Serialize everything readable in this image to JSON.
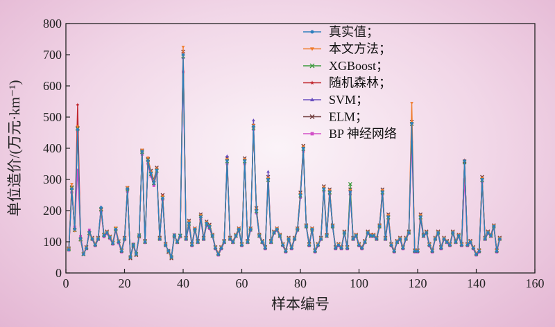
{
  "chart_data": {
    "type": "line",
    "xlabel": "样本编号",
    "ylabel": "单位造价/(万元·km⁻¹)",
    "xlim": [
      0,
      160
    ],
    "ylim": [
      0,
      800
    ],
    "xticks": [
      0,
      20,
      40,
      60,
      80,
      100,
      120,
      140,
      160
    ],
    "yticks": [
      0,
      100,
      200,
      300,
      400,
      500,
      600,
      700,
      800
    ],
    "grid": false,
    "legend_position": "top-right",
    "x": [
      1,
      2,
      3,
      4,
      5,
      6,
      7,
      8,
      9,
      10,
      11,
      12,
      13,
      14,
      15,
      16,
      17,
      18,
      19,
      20,
      21,
      22,
      23,
      24,
      25,
      26,
      27,
      28,
      29,
      30,
      31,
      32,
      33,
      34,
      35,
      36,
      37,
      38,
      39,
      40,
      41,
      42,
      43,
      44,
      45,
      46,
      47,
      48,
      49,
      50,
      51,
      52,
      53,
      54,
      55,
      56,
      57,
      58,
      59,
      60,
      61,
      62,
      63,
      64,
      65,
      66,
      67,
      68,
      69,
      70,
      71,
      72,
      73,
      74,
      75,
      76,
      77,
      78,
      79,
      80,
      81,
      82,
      83,
      84,
      85,
      86,
      87,
      88,
      89,
      90,
      91,
      92,
      93,
      94,
      95,
      96,
      97,
      98,
      99,
      100,
      101,
      102,
      103,
      104,
      105,
      106,
      107,
      108,
      109,
      110,
      111,
      112,
      113,
      114,
      115,
      116,
      117,
      118,
      119,
      120,
      121,
      122,
      123,
      124,
      125,
      126,
      127,
      128,
      129,
      130,
      131,
      132,
      133,
      134,
      135,
      136,
      137,
      138,
      139,
      140,
      141,
      142,
      143,
      144,
      145,
      146,
      147,
      148
    ],
    "series": [
      {
        "name": "真实值；",
        "color": "#2e7fbd",
        "marker": "circle",
        "values": [
          75,
          270,
          140,
          460,
          110,
          60,
          80,
          130,
          110,
          90,
          110,
          210,
          120,
          130,
          115,
          95,
          140,
          100,
          70,
          110,
          270,
          50,
          90,
          60,
          120,
          390,
          100,
          360,
          320,
          290,
          330,
          110,
          240,
          90,
          70,
          50,
          120,
          100,
          120,
          700,
          110,
          160,
          90,
          140,
          100,
          180,
          110,
          160,
          150,
          120,
          80,
          60,
          80,
          100,
          360,
          110,
          100,
          120,
          140,
          90,
          360,
          100,
          140,
          470,
          200,
          120,
          100,
          80,
          300,
          100,
          130,
          140,
          120,
          90,
          70,
          110,
          80,
          110,
          140,
          250,
          400,
          150,
          90,
          140,
          70,
          90,
          110,
          270,
          120,
          260,
          150,
          80,
          90,
          80,
          130,
          80,
          260,
          110,
          120,
          90,
          80,
          100,
          130,
          120,
          120,
          110,
          150,
          260,
          110,
          180,
          90,
          70,
          100,
          110,
          80,
          110,
          130,
          480,
          70,
          70,
          180,
          120,
          130,
          90,
          70,
          110,
          130,
          80,
          110,
          100,
          90,
          130,
          100,
          120,
          90,
          360,
          90,
          100,
          80,
          60,
          70,
          300,
          110,
          130,
          120,
          150,
          70,
          110
        ]
      },
      {
        "name": "本文方法；",
        "color": "#f07d2e",
        "marker": "triangle-down",
        "values": [
          78,
          285,
          135,
          470,
          105,
          62,
          82,
          125,
          112,
          92,
          112,
          200,
          125,
          132,
          118,
          98,
          145,
          103,
          72,
          112,
          275,
          48,
          88,
          58,
          118,
          395,
          102,
          370,
          325,
          295,
          335,
          112,
          245,
          92,
          68,
          48,
          118,
          102,
          118,
          725,
          112,
          165,
          92,
          142,
          102,
          185,
          112,
          162,
          152,
          122,
          82,
          62,
          82,
          102,
          365,
          112,
          102,
          122,
          142,
          92,
          365,
          102,
          142,
          475,
          205,
          122,
          102,
          82,
          305,
          102,
          132,
          142,
          122,
          92,
          72,
          112,
          82,
          112,
          142,
          255,
          405,
          152,
          92,
          142,
          72,
          92,
          112,
          275,
          122,
          265,
          152,
          82,
          92,
          82,
          132,
          82,
          265,
          112,
          122,
          92,
          82,
          102,
          132,
          122,
          122,
          112,
          152,
          265,
          112,
          185,
          92,
          72,
          102,
          112,
          82,
          112,
          132,
          545,
          72,
          72,
          185,
          122,
          132,
          92,
          72,
          112,
          132,
          82,
          112,
          102,
          92,
          132,
          102,
          122,
          92,
          360,
          92,
          102,
          82,
          62,
          72,
          305,
          112,
          132,
          122,
          152,
          72,
          112
        ]
      },
      {
        "name": "XGBoost；",
        "color": "#3d9a3d",
        "marker": "x",
        "values": [
          76,
          272,
          138,
          462,
          108,
          61,
          79,
          128,
          109,
          91,
          109,
          205,
          121,
          129,
          114,
          96,
          141,
          101,
          71,
          109,
          268,
          51,
          91,
          61,
          121,
          388,
          99,
          362,
          318,
          288,
          328,
          109,
          242,
          89,
          71,
          51,
          121,
          99,
          119,
          695,
          109,
          158,
          91,
          139,
          99,
          182,
          109,
          158,
          148,
          119,
          81,
          61,
          81,
          99,
          358,
          109,
          99,
          119,
          139,
          91,
          358,
          99,
          139,
          465,
          198,
          119,
          99,
          81,
          298,
          99,
          129,
          139,
          119,
          91,
          71,
          109,
          81,
          109,
          139,
          248,
          398,
          149,
          91,
          139,
          71,
          91,
          109,
          268,
          119,
          258,
          149,
          81,
          91,
          81,
          129,
          81,
          285,
          109,
          119,
          91,
          81,
          99,
          129,
          119,
          119,
          109,
          149,
          258,
          109,
          178,
          91,
          71,
          99,
          109,
          81,
          109,
          129,
          478,
          71,
          71,
          178,
          119,
          129,
          91,
          71,
          109,
          129,
          81,
          109,
          99,
          91,
          129,
          99,
          119,
          91,
          355,
          91,
          99,
          81,
          61,
          71,
          298,
          109,
          129,
          119,
          149,
          71,
          109
        ]
      },
      {
        "name": "随机森林；",
        "color": "#c0262d",
        "marker": "star",
        "values": [
          77,
          268,
          142,
          540,
          112,
          59,
          81,
          132,
          111,
          89,
          111,
          208,
          119,
          131,
          116,
          94,
          139,
          99,
          69,
          111,
          272,
          49,
          89,
          59,
          119,
          392,
          101,
          358,
          322,
          292,
          332,
          111,
          248,
          91,
          69,
          49,
          119,
          101,
          121,
          705,
          111,
          162,
          89,
          141,
          101,
          178,
          111,
          161,
          151,
          121,
          79,
          59,
          79,
          101,
          362,
          111,
          101,
          121,
          141,
          89,
          362,
          101,
          141,
          468,
          202,
          121,
          101,
          79,
          302,
          101,
          131,
          141,
          121,
          89,
          69,
          111,
          79,
          111,
          141,
          252,
          402,
          151,
          89,
          141,
          69,
          89,
          111,
          272,
          121,
          262,
          151,
          79,
          89,
          79,
          131,
          79,
          262,
          111,
          121,
          89,
          79,
          101,
          131,
          121,
          121,
          111,
          151,
          262,
          111,
          182,
          89,
          69,
          101,
          111,
          79,
          111,
          131,
          482,
          69,
          69,
          182,
          121,
          131,
          89,
          69,
          111,
          131,
          79,
          111,
          101,
          89,
          131,
          101,
          121,
          89,
          362,
          89,
          101,
          79,
          59,
          69,
          302,
          111,
          131,
          121,
          151,
          69,
          111
        ]
      },
      {
        "name": "SVM；",
        "color": "#6a4fbf",
        "marker": "triangle-up",
        "values": [
          74,
          262,
          145,
          455,
          115,
          63,
          78,
          135,
          108,
          88,
          108,
          212,
          118,
          128,
          112,
          93,
          138,
          98,
          68,
          108,
          265,
          52,
          92,
          62,
          122,
          385,
          98,
          355,
          315,
          285,
          325,
          108,
          238,
          88,
          72,
          52,
          122,
          98,
          117,
          690,
          108,
          155,
          88,
          138,
          98,
          175,
          108,
          155,
          145,
          118,
          78,
          58,
          78,
          98,
          375,
          108,
          98,
          118,
          138,
          88,
          355,
          98,
          138,
          490,
          195,
          118,
          98,
          78,
          325,
          98,
          128,
          138,
          118,
          88,
          68,
          108,
          78,
          108,
          138,
          245,
          395,
          148,
          88,
          138,
          68,
          88,
          108,
          265,
          118,
          255,
          148,
          78,
          88,
          78,
          128,
          78,
          255,
          108,
          118,
          88,
          78,
          98,
          128,
          118,
          118,
          108,
          148,
          255,
          108,
          175,
          88,
          68,
          98,
          108,
          78,
          108,
          128,
          475,
          68,
          68,
          175,
          118,
          128,
          88,
          68,
          108,
          128,
          78,
          108,
          98,
          88,
          128,
          98,
          118,
          88,
          352,
          88,
          98,
          78,
          58,
          68,
          295,
          108,
          128,
          118,
          148,
          68,
          108
        ]
      },
      {
        "name": "ELM；",
        "color": "#6e3a3a",
        "marker": "x",
        "values": [
          79,
          275,
          137,
          465,
          107,
          60,
          83,
          127,
          113,
          93,
          113,
          203,
          123,
          133,
          117,
          97,
          143,
          102,
          73,
          113,
          273,
          47,
          87,
          57,
          117,
          393,
          103,
          365,
          328,
          298,
          338,
          113,
          250,
          93,
          67,
          47,
          117,
          103,
          120,
          710,
          113,
          168,
          93,
          143,
          103,
          188,
          113,
          165,
          155,
          123,
          83,
          63,
          83,
          103,
          368,
          113,
          103,
          123,
          143,
          93,
          368,
          103,
          143,
          472,
          208,
          123,
          103,
          83,
          308,
          103,
          133,
          143,
          123,
          93,
          73,
          113,
          83,
          113,
          143,
          258,
          408,
          153,
          93,
          143,
          73,
          93,
          113,
          278,
          123,
          268,
          153,
          83,
          93,
          83,
          133,
          83,
          268,
          113,
          123,
          93,
          83,
          103,
          133,
          123,
          123,
          113,
          153,
          268,
          113,
          188,
          93,
          73,
          103,
          113,
          83,
          113,
          133,
          485,
          73,
          73,
          188,
          123,
          133,
          93,
          73,
          113,
          133,
          83,
          113,
          103,
          93,
          133,
          103,
          123,
          93,
          358,
          93,
          103,
          83,
          63,
          73,
          308,
          113,
          133,
          123,
          153,
          73,
          113
        ]
      },
      {
        "name": "BP 神经网络",
        "color": "#d24fc7",
        "marker": "square",
        "values": [
          73,
          258,
          148,
          330,
          118,
          64,
          77,
          138,
          107,
          87,
          107,
          195,
          116,
          126,
          110,
          92,
          136,
          96,
          67,
          106,
          260,
          53,
          93,
          63,
          123,
          380,
          97,
          350,
          310,
          280,
          320,
          107,
          235,
          87,
          73,
          53,
          123,
          97,
          115,
          645,
          107,
          152,
          87,
          136,
          97,
          172,
          107,
          152,
          142,
          117,
          77,
          57,
          77,
          97,
          350,
          107,
          97,
          117,
          136,
          87,
          350,
          97,
          136,
          460,
          192,
          117,
          97,
          77,
          295,
          97,
          127,
          136,
          117,
          87,
          67,
          107,
          77,
          107,
          136,
          242,
          390,
          147,
          87,
          136,
          67,
          87,
          107,
          262,
          117,
          252,
          147,
          77,
          87,
          77,
          127,
          77,
          252,
          107,
          117,
          87,
          77,
          97,
          127,
          117,
          117,
          107,
          147,
          252,
          107,
          172,
          87,
          67,
          97,
          107,
          77,
          107,
          127,
          420,
          67,
          67,
          172,
          117,
          127,
          87,
          67,
          107,
          127,
          77,
          107,
          97,
          87,
          127,
          97,
          117,
          87,
          300,
          87,
          97,
          77,
          57,
          67,
          292,
          107,
          127,
          117,
          147,
          67,
          107
        ]
      }
    ]
  }
}
